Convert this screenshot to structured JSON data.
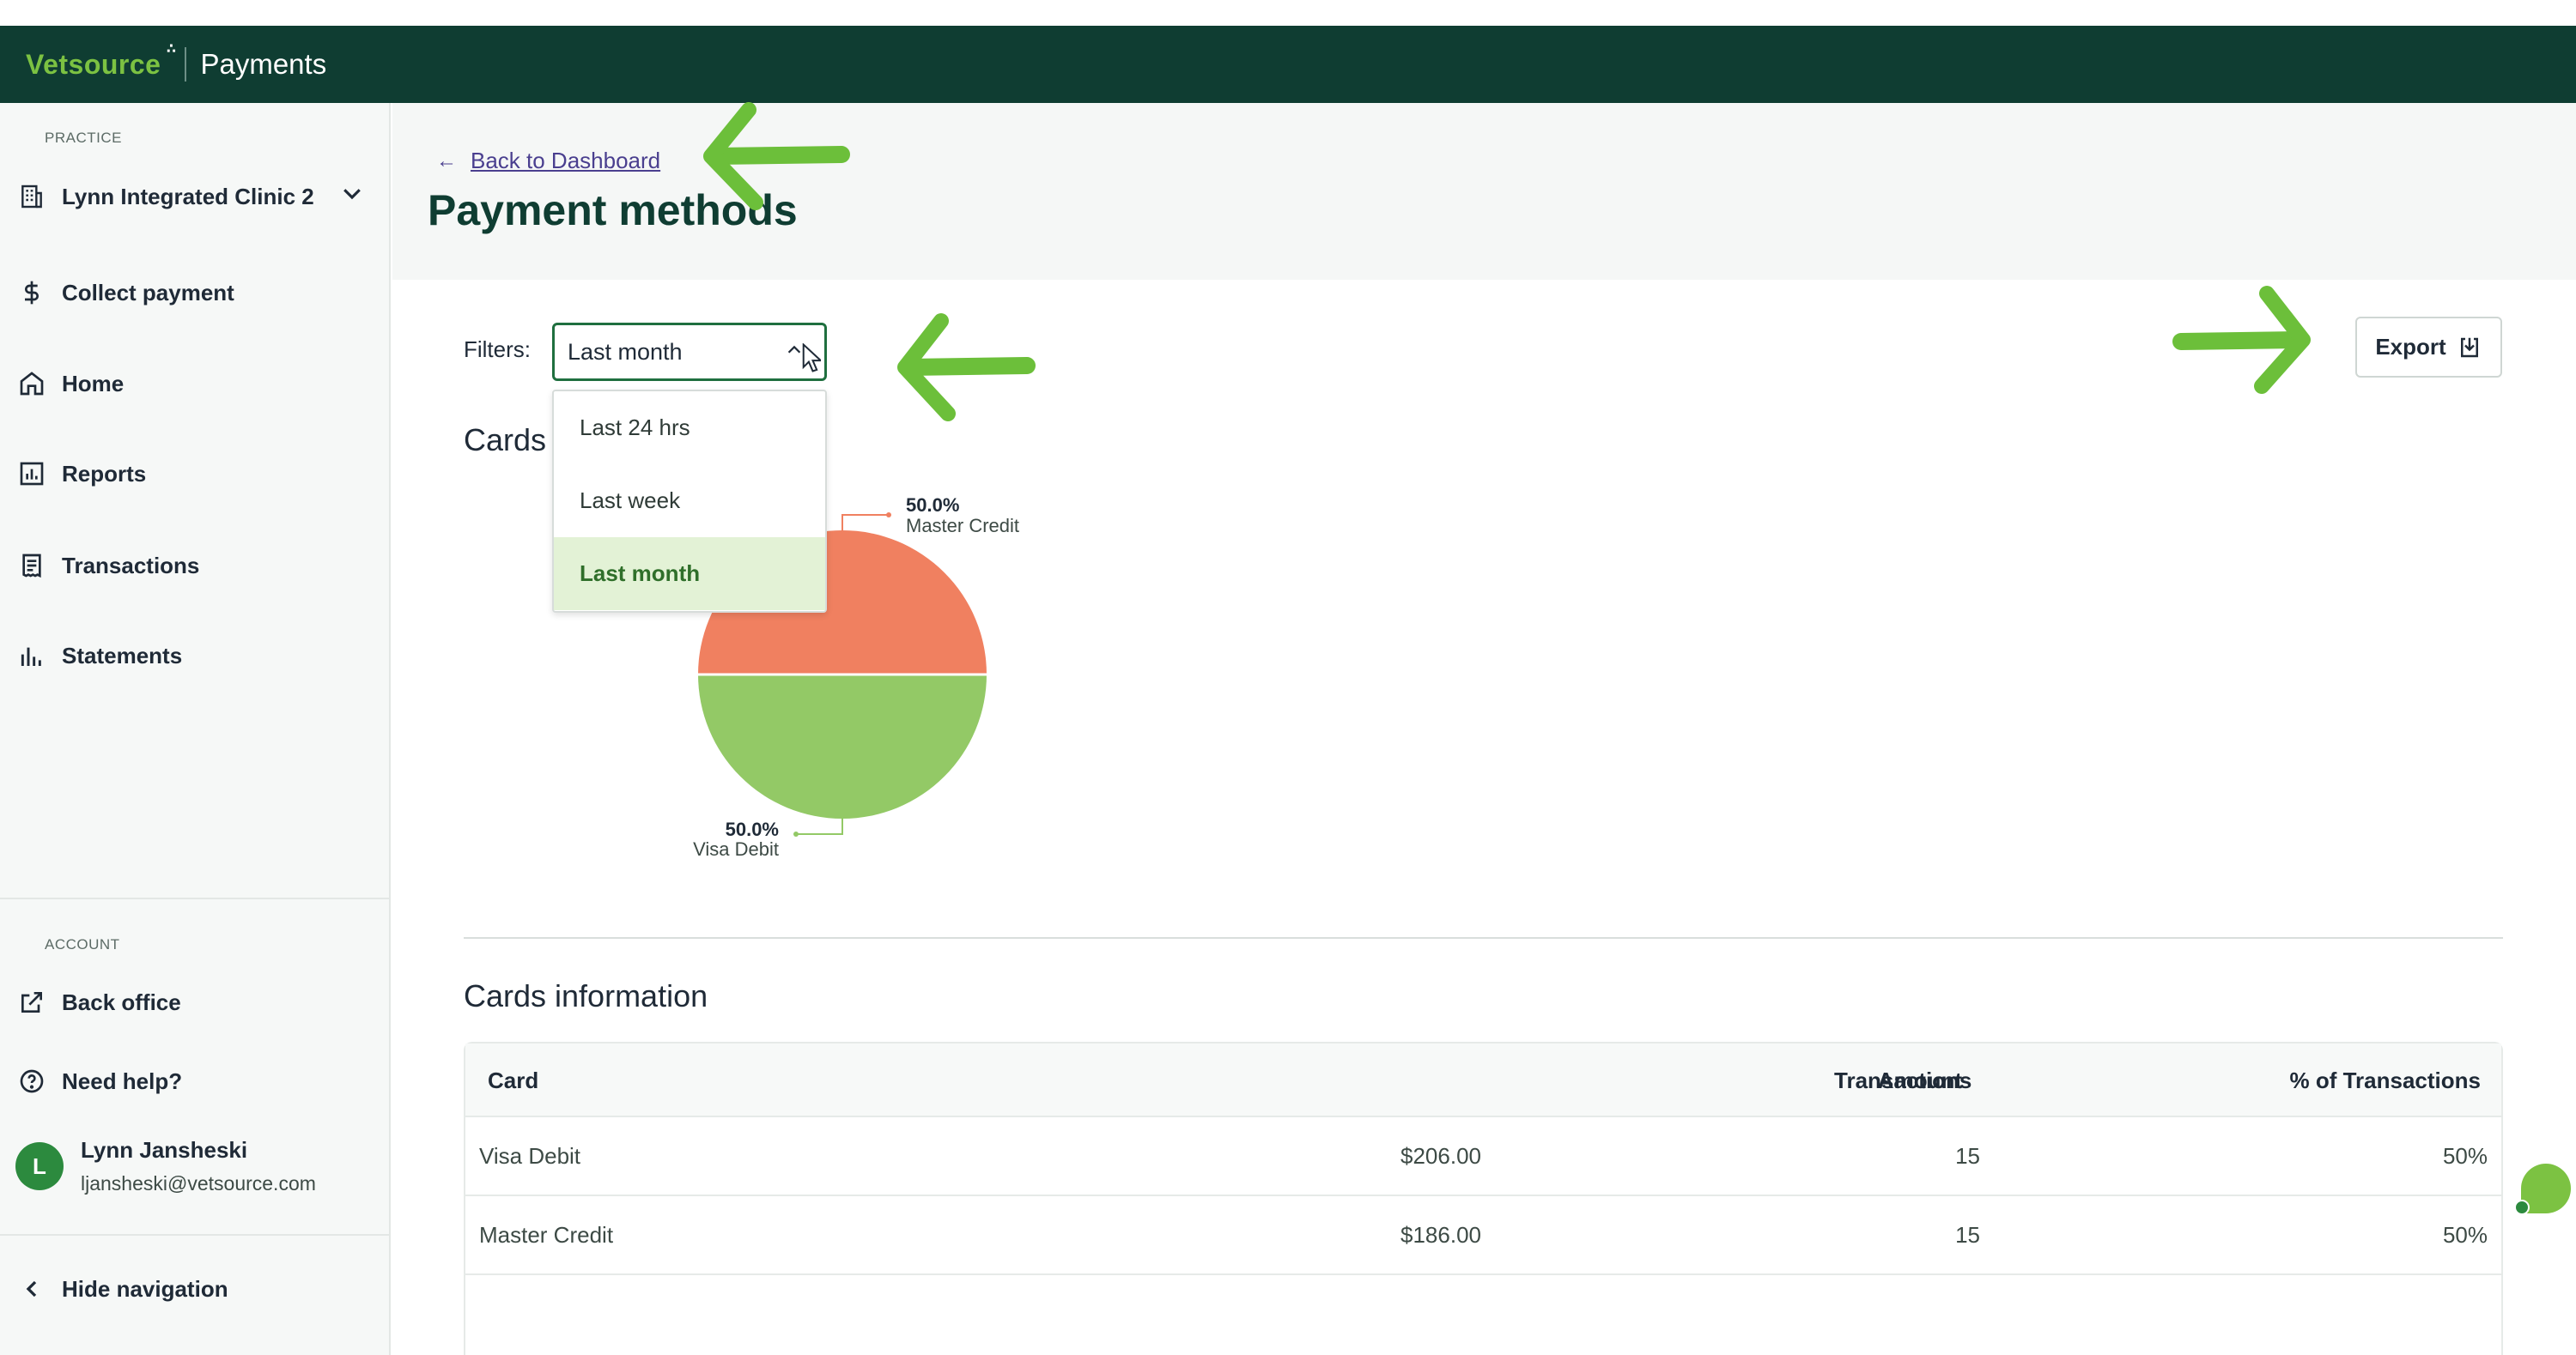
{
  "app": {
    "brand": "Vetsource",
    "name": "Payments"
  },
  "sidebar": {
    "practice_label": "PRACTICE",
    "practice_name": "Lynn Integrated Clinic 2",
    "items": [
      {
        "label": "Collect payment",
        "icon": "dollar-icon"
      },
      {
        "label": "Home",
        "icon": "home-icon"
      },
      {
        "label": "Reports",
        "icon": "reports-icon"
      },
      {
        "label": "Transactions",
        "icon": "receipt-icon"
      },
      {
        "label": "Statements",
        "icon": "bar-chart-icon"
      }
    ],
    "account_label": "ACCOUNT",
    "back_office": "Back office",
    "need_help": "Need help?",
    "user": {
      "initial": "L",
      "name": "Lynn Jansheski",
      "email": "ljansheski@vetsource.com"
    },
    "hide_nav": "Hide navigation"
  },
  "header": {
    "back_link": "Back to Dashboard",
    "title": "Payment methods"
  },
  "filters": {
    "label": "Filters:",
    "selected": "Last month",
    "options": [
      "Last 24 hrs",
      "Last week",
      "Last month"
    ]
  },
  "export_label": "Export",
  "cards_heading": "Cards",
  "chart_data": {
    "type": "pie",
    "slices": [
      {
        "label": "Master Credit",
        "value": 50.0,
        "pct_label": "50.0%",
        "color": "#f08060"
      },
      {
        "label": "Visa Debit",
        "value": 50.0,
        "pct_label": "50.0%",
        "color": "#93c966"
      }
    ]
  },
  "info": {
    "heading": "Cards information",
    "columns": [
      "Card",
      "Amount",
      "Transactions",
      "% of Transactions"
    ],
    "rows": [
      [
        "Visa Debit",
        "$206.00",
        "15",
        "50%"
      ],
      [
        "Master Credit",
        "$186.00",
        "15",
        "50%"
      ]
    ]
  },
  "colors": {
    "topbar": "#0f3d32",
    "brand_green": "#7cc242",
    "accent_green": "#1f6f3f",
    "annotation_arrow": "#6cbf3a"
  }
}
